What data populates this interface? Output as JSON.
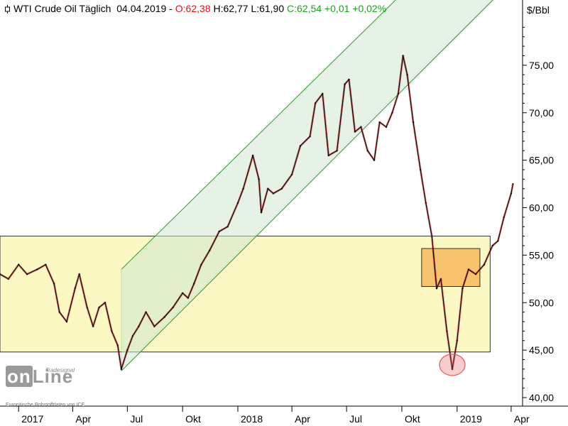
{
  "header": {
    "instrument": "WTI Crude Oil Täglich",
    "date": "04.04.2019",
    "open": "O:62,38",
    "high": "H:62,77",
    "low": "L:61,90",
    "close": "C:62,54",
    "change": "+0,01",
    "change_pct": "+0,02%"
  },
  "branding": {
    "logo_text": "onLine",
    "logo_small": "Tradesignal",
    "source_note": "Europäische Rohstoffdaten von ICE"
  },
  "colors": {
    "up": "#1aa31a",
    "down": "#d01818",
    "price_line": "#000000",
    "channel_fill": "#cfe8cf",
    "channel_line": "#2a9a2a",
    "range_fill": "#fbf8c4",
    "box_fill": "#f7b55a",
    "circle": "#e55a5a"
  },
  "chart_data": {
    "type": "line",
    "title": "WTI Crude Oil Täglich",
    "ylabel": "$/Bbl",
    "ylim": [
      40.0,
      80.0
    ],
    "y_ticks": [
      40,
      45,
      50,
      55,
      60,
      65,
      70,
      75
    ],
    "y_tick_labels": [
      "40,00",
      "45,00",
      "50,00",
      "55,00",
      "60,00",
      "65,00",
      "70,00",
      "75,00"
    ],
    "x_tick_labels": [
      "2017",
      "Apr",
      "Jul",
      "Okt",
      "2018",
      "Apr",
      "Jul",
      "Okt",
      "2019",
      "Apr"
    ],
    "x_tick_dates": [
      "2017-01-01",
      "2017-04-01",
      "2017-07-01",
      "2017-10-01",
      "2018-01-01",
      "2018-04-01",
      "2018-07-01",
      "2018-10-01",
      "2019-01-01",
      "2019-04-01"
    ],
    "xlim": [
      "2016-12-01",
      "2019-04-20"
    ],
    "series": [
      {
        "x": [
          "2016-12-01",
          "2016-12-15",
          "2017-01-01",
          "2017-01-15",
          "2017-02-01",
          "2017-02-15",
          "2017-03-01",
          "2017-03-10",
          "2017-03-22",
          "2017-04-05",
          "2017-04-12",
          "2017-04-25",
          "2017-05-05",
          "2017-05-15",
          "2017-05-25",
          "2017-06-05",
          "2017-06-15",
          "2017-06-21",
          "2017-07-01",
          "2017-07-10",
          "2017-07-20",
          "2017-08-01",
          "2017-08-15",
          "2017-09-01",
          "2017-09-15",
          "2017-10-01",
          "2017-10-10",
          "2017-10-20",
          "2017-11-01",
          "2017-11-15",
          "2017-12-01",
          "2017-12-15",
          "2018-01-01",
          "2018-01-10",
          "2018-01-26",
          "2018-02-05",
          "2018-02-09",
          "2018-02-20",
          "2018-03-01",
          "2018-03-15",
          "2018-04-01",
          "2018-04-15",
          "2018-05-01",
          "2018-05-10",
          "2018-05-22",
          "2018-06-01",
          "2018-06-15",
          "2018-06-28",
          "2018-07-05",
          "2018-07-15",
          "2018-07-25",
          "2018-08-05",
          "2018-08-16",
          "2018-08-25",
          "2018-09-05",
          "2018-09-15",
          "2018-09-25",
          "2018-10-03",
          "2018-10-10",
          "2018-10-20",
          "2018-11-01",
          "2018-11-10",
          "2018-11-20",
          "2018-11-28",
          "2018-12-05",
          "2018-12-15",
          "2018-12-24",
          "2019-01-01",
          "2019-01-10",
          "2019-01-20",
          "2019-02-01",
          "2019-02-15",
          "2019-03-01",
          "2019-03-10",
          "2019-03-20",
          "2019-04-01",
          "2019-04-04"
        ],
        "values": [
          53.0,
          52.5,
          54.0,
          53.0,
          53.5,
          54.0,
          52.0,
          49.0,
          48.0,
          51.5,
          53.0,
          49.5,
          47.5,
          49.5,
          50.0,
          47.0,
          45.5,
          43.0,
          45.0,
          46.5,
          47.5,
          49.0,
          47.5,
          48.5,
          49.5,
          51.0,
          50.5,
          52.0,
          54.0,
          55.5,
          57.5,
          58.0,
          60.5,
          62.0,
          65.5,
          63.0,
          59.5,
          62.0,
          61.5,
          62.0,
          63.5,
          66.5,
          67.5,
          71.0,
          72.0,
          65.5,
          66.0,
          73.0,
          73.5,
          68.0,
          68.5,
          66.0,
          65.0,
          69.0,
          68.5,
          70.0,
          72.0,
          76.0,
          74.0,
          69.0,
          64.0,
          60.5,
          57.0,
          51.5,
          52.5,
          47.0,
          43.0,
          46.0,
          51.5,
          53.5,
          53.0,
          54.0,
          56.0,
          56.5,
          59.0,
          61.5,
          62.5
        ]
      }
    ],
    "annotations": {
      "channel": {
        "x": [
          "2017-06-21",
          "2019-04-20"
        ],
        "lower": [
          42.8,
          85.0
        ],
        "upper": [
          53.5,
          95.0
        ]
      },
      "range_zone": {
        "x": [
          "2016-12-01",
          "2019-02-25"
        ],
        "y": [
          44.8,
          57.0
        ]
      },
      "consolidation_box": {
        "x": [
          "2018-11-03",
          "2019-02-08"
        ],
        "y": [
          51.7,
          55.7
        ]
      },
      "low_marker": {
        "x": "2018-12-24",
        "y": 43.3
      }
    },
    "grid": false,
    "legend": "none"
  }
}
